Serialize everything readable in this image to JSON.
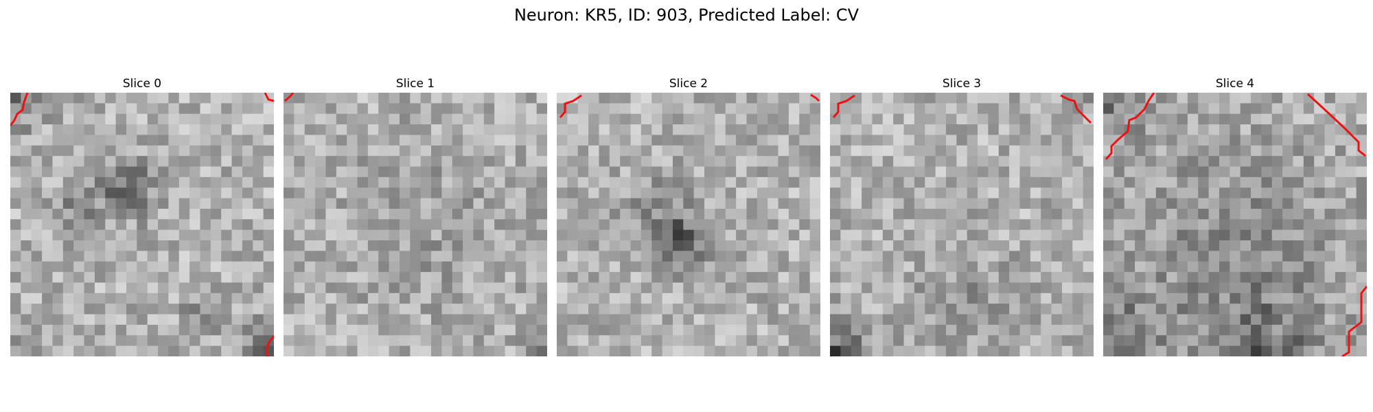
{
  "figure": {
    "title": "Neuron: KR5, ID: 903, Predicted Label: CV"
  },
  "slices": [
    {
      "label": "Slice 0",
      "blobs": [
        [
          0.44,
          0.36,
          0.11,
          -70
        ],
        [
          0.25,
          0.45,
          0.08,
          -40
        ],
        [
          0.74,
          0.83,
          0.08,
          -40
        ]
      ],
      "corners": [
        [
          0,
          0,
          0.12,
          -60
        ],
        [
          1,
          1,
          0.12,
          -70
        ],
        [
          0,
          1,
          0.1,
          -40
        ]
      ]
    },
    {
      "label": "Slice 1",
      "blobs": [
        [
          0.55,
          0.52,
          0.35,
          -18
        ]
      ],
      "corners": [
        [
          1,
          1,
          0.08,
          -70
        ]
      ]
    },
    {
      "label": "Slice 2",
      "blobs": [
        [
          0.45,
          0.57,
          0.11,
          -85
        ],
        [
          0.4,
          0.42,
          0.16,
          -25
        ]
      ],
      "corners": []
    },
    {
      "label": "Slice 3",
      "blobs": [
        [
          0.52,
          0.8,
          0.22,
          -25
        ]
      ],
      "corners": [
        [
          0,
          1,
          0.14,
          -85
        ],
        [
          0,
          0,
          0.1,
          -40
        ],
        [
          1,
          0,
          0.1,
          -30
        ]
      ]
    },
    {
      "label": "Slice 4",
      "blobs": [
        [
          0.5,
          0.62,
          0.45,
          -35
        ]
      ],
      "corners": [
        [
          0,
          1,
          0.22,
          -60
        ],
        [
          0,
          0,
          0.18,
          -50
        ],
        [
          0.6,
          1,
          0.2,
          -55
        ]
      ]
    }
  ]
}
